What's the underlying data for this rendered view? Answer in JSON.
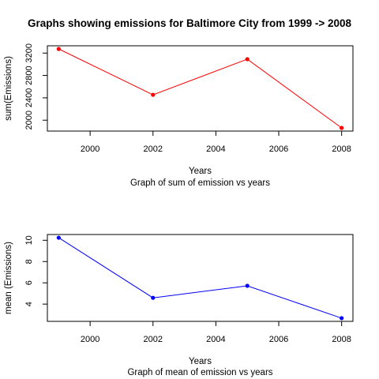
{
  "page": {
    "title": "Graphs showing emissions for Baltimore City from 1999 -> 2008"
  },
  "chart_data": [
    {
      "type": "line",
      "title": "",
      "xlabel": "Years",
      "subtitle": "Graph of sum of emission vs years",
      "ylabel": "sum(Emissions)",
      "x": [
        1999,
        2002,
        2005,
        2008
      ],
      "series": [
        {
          "values": [
            3274,
            2454,
            3091,
            1862
          ],
          "color": "#ff0000"
        }
      ],
      "xlim": [
        1999,
        2008
      ],
      "ylim": [
        1862,
        3274
      ],
      "x_ticks": [
        "2000",
        "2002",
        "2004",
        "2006",
        "2008"
      ],
      "y_ticks": [
        "2000",
        "2400",
        "2800",
        "3200"
      ],
      "grid": false,
      "legend": "none"
    },
    {
      "type": "line",
      "title": "",
      "xlabel": "Years",
      "subtitle": "Graph of mean of emission vs years",
      "ylabel": "mean (Emissions)",
      "x": [
        1999,
        2002,
        2005,
        2008
      ],
      "series": [
        {
          "values": [
            10.24,
            4.59,
            5.72,
            2.68
          ],
          "color": "#0000ff"
        }
      ],
      "xlim": [
        1999,
        2008
      ],
      "ylim": [
        2.68,
        10.24
      ],
      "x_ticks": [
        "2000",
        "2002",
        "2004",
        "2006",
        "2008"
      ],
      "y_ticks": [
        "4",
        "6",
        "8",
        "10"
      ],
      "grid": false,
      "legend": "none"
    }
  ]
}
